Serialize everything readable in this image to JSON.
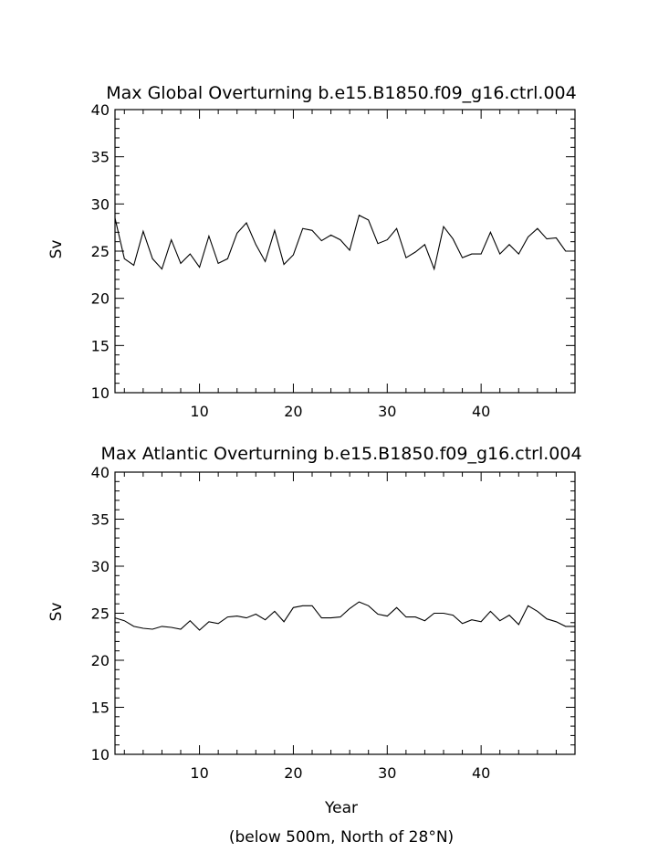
{
  "chart_data": [
    {
      "type": "line",
      "title": "Max Global Overturning b.e15.B1850.f09_g16.ctrl.004",
      "xlabel": "",
      "ylabel": "Sv",
      "xlim": [
        1,
        50
      ],
      "ylim": [
        10,
        40
      ],
      "y_ticks": [
        10,
        15,
        20,
        25,
        30,
        35,
        40
      ],
      "y_tick_labels": [
        "10",
        "15",
        "20",
        "25",
        "30",
        "35",
        "40"
      ],
      "x_ticks": [
        10,
        20,
        30,
        40
      ],
      "x_tick_labels": [
        "10",
        "20",
        "30",
        "40"
      ],
      "grid": false,
      "series": [
        {
          "x": [
            1,
            2,
            3,
            4,
            5,
            6,
            7,
            8,
            9,
            10,
            11,
            12,
            13,
            14,
            15,
            16,
            17,
            18,
            19,
            20,
            21,
            22,
            23,
            24,
            25,
            26,
            27,
            28,
            29,
            30,
            31,
            32,
            33,
            34,
            35,
            36,
            37,
            38,
            39,
            40,
            41,
            42,
            43,
            44,
            45,
            46,
            47,
            48,
            49,
            50
          ],
          "values": [
            28.5,
            24.2,
            23.5,
            27.1,
            24.2,
            23.1,
            26.2,
            23.7,
            24.7,
            23.3,
            26.6,
            23.7,
            24.2,
            26.9,
            28.0,
            25.7,
            23.9,
            27.2,
            23.6,
            24.6,
            27.4,
            27.2,
            26.1,
            26.7,
            26.2,
            25.1,
            28.8,
            28.3,
            25.8,
            26.2,
            27.4,
            24.3,
            24.9,
            25.7,
            23.1,
            27.6,
            26.3,
            24.3,
            24.7,
            24.7,
            27.0,
            24.7,
            25.7,
            24.7,
            26.5,
            27.4,
            26.3,
            26.4,
            25.0,
            25.0
          ]
        }
      ]
    },
    {
      "type": "line",
      "title": "Max Atlantic Overturning b.e15.B1850.f09_g16.ctrl.004",
      "xlabel": "Year",
      "ylabel": "Sv",
      "note": "(below 500m, North of 28°N)",
      "xlim": [
        1,
        50
      ],
      "ylim": [
        10,
        40
      ],
      "y_ticks": [
        10,
        15,
        20,
        25,
        30,
        35,
        40
      ],
      "y_tick_labels": [
        "10",
        "15",
        "20",
        "25",
        "30",
        "35",
        "40"
      ],
      "x_ticks": [
        10,
        20,
        30,
        40
      ],
      "x_tick_labels": [
        "10",
        "20",
        "30",
        "40"
      ],
      "grid": false,
      "series": [
        {
          "x": [
            1,
            2,
            3,
            4,
            5,
            6,
            7,
            8,
            9,
            10,
            11,
            12,
            13,
            14,
            15,
            16,
            17,
            18,
            19,
            20,
            21,
            22,
            23,
            24,
            25,
            26,
            27,
            28,
            29,
            30,
            31,
            32,
            33,
            34,
            35,
            36,
            37,
            38,
            39,
            40,
            41,
            42,
            43,
            44,
            45,
            46,
            47,
            48,
            49,
            50
          ],
          "values": [
            24.5,
            24.2,
            23.6,
            23.4,
            23.3,
            23.6,
            23.5,
            23.3,
            24.2,
            23.2,
            24.1,
            23.9,
            24.6,
            24.7,
            24.5,
            24.9,
            24.3,
            25.2,
            24.1,
            25.6,
            25.8,
            25.8,
            24.5,
            24.5,
            24.6,
            25.5,
            26.2,
            25.8,
            24.9,
            24.7,
            25.6,
            24.6,
            24.6,
            24.2,
            25.0,
            25.0,
            24.8,
            23.9,
            24.3,
            24.1,
            25.2,
            24.2,
            24.8,
            23.8,
            25.8,
            25.2,
            24.4,
            24.1,
            23.6,
            23.6
          ]
        }
      ]
    }
  ]
}
